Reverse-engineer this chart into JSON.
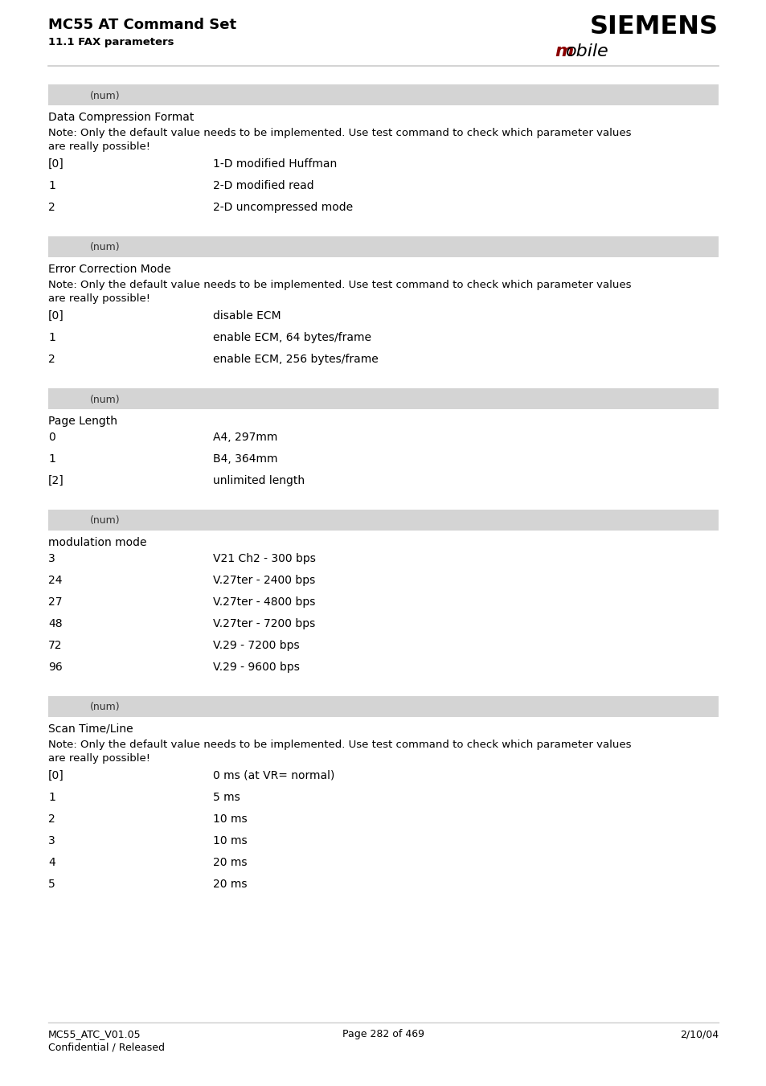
{
  "title": "MC55 AT Command Set",
  "subtitle": "11.1 FAX parameters",
  "siemens_text": "SIEMENS",
  "mobile_m": "m",
  "mobile_rest": "obile",
  "mobile_m_color": "#8b0000",
  "mobile_rest_color": "#000000",
  "header_line_color": "#cccccc",
  "footer_line_color": "#cccccc",
  "footer_left1": "MC55_ATC_V01.05",
  "footer_left2": "Confidential / Released",
  "footer_center": "Page 282 of 469",
  "footer_right": "2/10/04",
  "bg_color": "#ffffff",
  "section_bg": "#d4d4d4",
  "sections": [
    {
      "tag": "(num)",
      "section_title": "Data Compression Format",
      "note": "Note: Only the default value needs to be implemented. Use test command to check which parameter values are really possible!",
      "rows": [
        {
          "key": "[0]",
          "value": "1-D modified Huffman"
        },
        {
          "key": "1",
          "value": "2-D modified read"
        },
        {
          "key": "2",
          "value": "2-D uncompressed mode"
        }
      ]
    },
    {
      "tag": "(num)",
      "section_title": "Error Correction Mode",
      "note": "Note: Only the default value needs to be implemented. Use test command to check which parameter values are really possible!",
      "rows": [
        {
          "key": "[0]",
          "value": "disable ECM"
        },
        {
          "key": "1",
          "value": "enable ECM, 64 bytes/frame"
        },
        {
          "key": "2",
          "value": "enable ECM, 256 bytes/frame"
        }
      ]
    },
    {
      "tag": "(num)",
      "section_title": "Page Length",
      "note": "",
      "rows": [
        {
          "key": "0",
          "value": "A4, 297mm"
        },
        {
          "key": "1",
          "value": "B4, 364mm"
        },
        {
          "key": "[2]",
          "value": "unlimited length"
        }
      ]
    },
    {
      "tag": "(num)",
      "section_title": "modulation mode",
      "note": "",
      "rows": [
        {
          "key": "3",
          "value": "V21 Ch2 - 300 bps"
        },
        {
          "key": "24",
          "value": "V.27ter - 2400 bps"
        },
        {
          "key": "27",
          "value": "V.27ter - 4800 bps"
        },
        {
          "key": "48",
          "value": "V.27ter - 7200 bps"
        },
        {
          "key": "72",
          "value": "V.29 - 7200 bps"
        },
        {
          "key": "96",
          "value": "V.29 - 9600 bps"
        }
      ]
    },
    {
      "tag": "(num)",
      "section_title": "Scan Time/Line",
      "note": "Note: Only the default value needs to be implemented. Use test command to check which parameter values are really possible!",
      "rows": [
        {
          "key": "[0]",
          "value": "0 ms (at VR= normal)"
        },
        {
          "key": "1",
          "value": "5 ms"
        },
        {
          "key": "2",
          "value": "10 ms"
        },
        {
          "key": "3",
          "value": "10 ms"
        },
        {
          "key": "4",
          "value": "20 ms"
        },
        {
          "key": "5",
          "value": "20 ms"
        }
      ]
    }
  ]
}
